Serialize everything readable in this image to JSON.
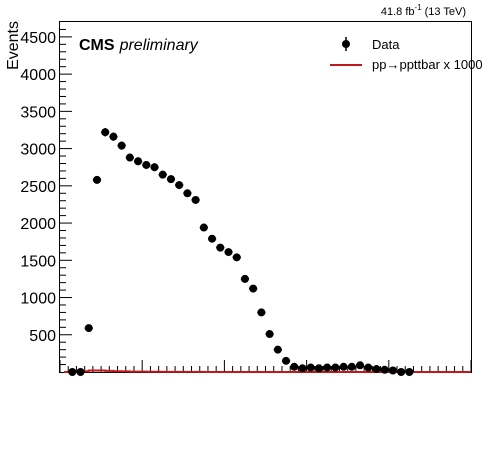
{
  "lumi": {
    "prefix": "41.8 fb",
    "exponent": "-1",
    "suffix": "(13 TeV)"
  },
  "cms_label": "CMS",
  "cms_sublabel": "preliminary",
  "chart_data": {
    "type": "scatter",
    "title": "",
    "xlabel": "",
    "ylabel": "Events",
    "ylim": [
      0,
      4700
    ],
    "yticks": [
      500,
      1000,
      1500,
      2000,
      2500,
      3000,
      3500,
      4000,
      4500
    ],
    "x_tick_labels_shown": false,
    "legend_placement": "top-right",
    "series": [
      {
        "name": "Data",
        "style": "points-with-errors",
        "color": "#000000",
        "x": [
          1,
          2,
          3,
          4,
          5,
          6,
          7,
          8,
          9,
          10,
          11,
          12,
          13,
          14,
          15,
          16,
          17,
          18,
          19,
          20,
          21,
          22,
          23,
          24,
          25,
          26,
          27,
          28,
          29,
          30,
          31,
          32,
          33,
          34,
          35,
          36,
          37,
          38,
          39,
          40,
          41,
          42
        ],
        "values": [
          0,
          0,
          590,
          2580,
          3220,
          3160,
          3040,
          2880,
          2830,
          2780,
          2750,
          2650,
          2590,
          2510,
          2400,
          2310,
          1940,
          1790,
          1670,
          1610,
          1540,
          1250,
          1120,
          800,
          510,
          300,
          150,
          70,
          50,
          60,
          50,
          60,
          60,
          70,
          70,
          90,
          60,
          40,
          30,
          20,
          0,
          0
        ]
      },
      {
        "name": "pp→ppttbar x 1000",
        "style": "line",
        "color": "#c0181b",
        "x": [
          1,
          2,
          3,
          4,
          5,
          6,
          7,
          8,
          9,
          10,
          11,
          12,
          13,
          14,
          15,
          16,
          17,
          18,
          19,
          20,
          21,
          22,
          23,
          24,
          25,
          26,
          27,
          28,
          29,
          30,
          31,
          32,
          33,
          34,
          35,
          36,
          37,
          38,
          39,
          40,
          41,
          42
        ],
        "values": [
          0,
          0,
          10,
          20,
          20,
          15,
          10,
          8,
          6,
          5,
          4,
          3,
          2,
          2,
          1,
          1,
          1,
          0,
          0,
          0,
          0,
          0,
          0,
          0,
          0,
          0,
          0,
          0,
          0,
          0,
          0,
          0,
          0,
          0,
          0,
          0,
          0,
          0,
          0,
          0,
          0,
          0
        ]
      }
    ]
  }
}
